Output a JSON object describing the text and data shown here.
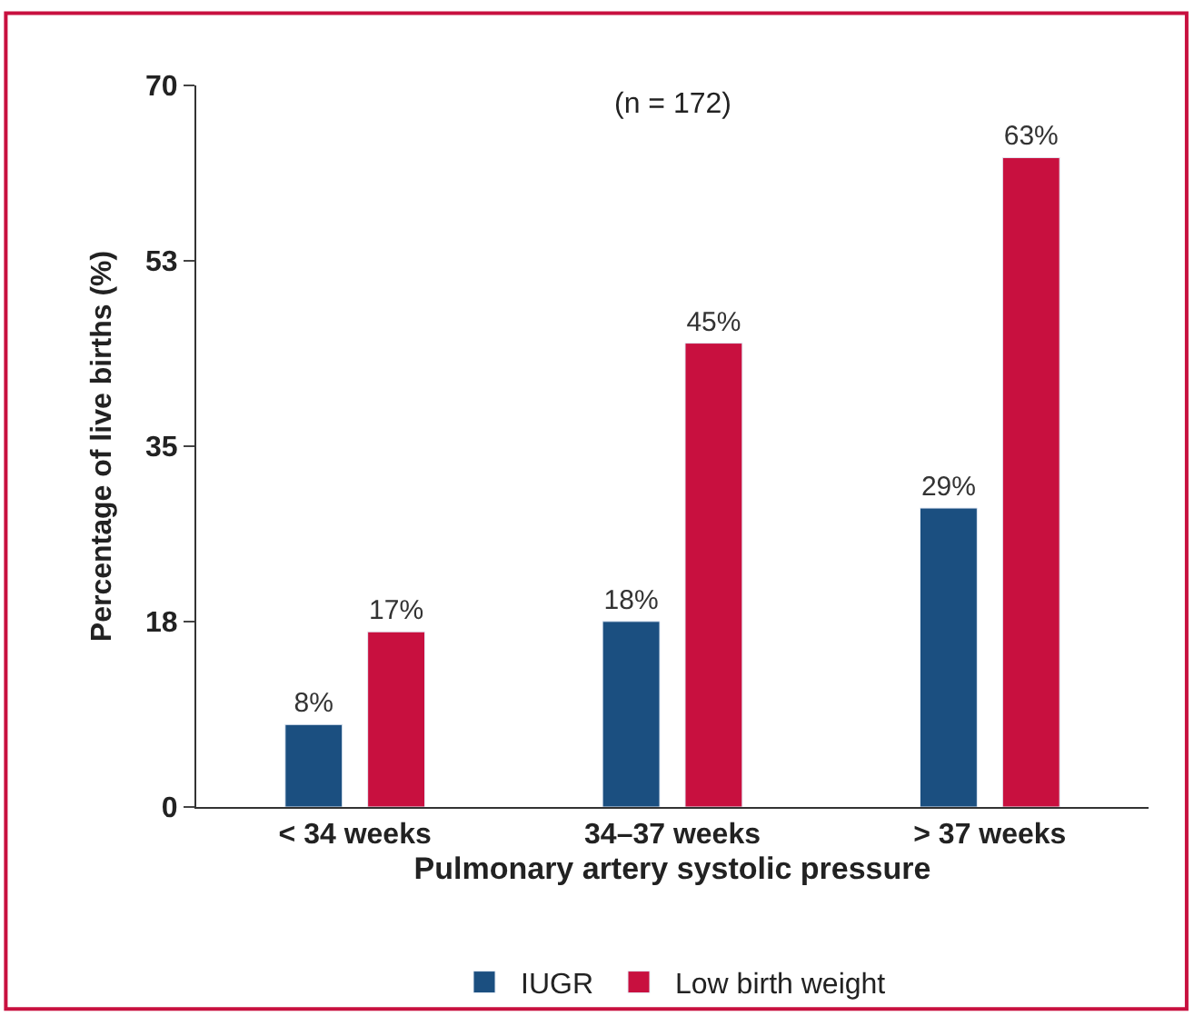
{
  "chart_data": {
    "type": "bar",
    "xlabel": "Pulmonary artery systolic pressure",
    "ylabel": "Percentage of live births (%)",
    "categories": [
      "< 34 weeks",
      "34–37 weeks",
      "> 37 weeks"
    ],
    "series": [
      {
        "name": "IUGR",
        "color": "#1b4f80",
        "values": [
          8,
          18,
          29
        ],
        "value_labels": [
          "8%",
          "18%",
          "29%"
        ]
      },
      {
        "name": "Low birth weight",
        "color": "#c8103f",
        "values": [
          17,
          45,
          63
        ],
        "value_labels": [
          "17%",
          "45%",
          "63%"
        ]
      }
    ],
    "ylim": [
      0,
      70
    ],
    "yticks": [
      0,
      18,
      35,
      53,
      70
    ],
    "legend": "bottom",
    "annotations": [
      "(n = 172)"
    ]
  }
}
